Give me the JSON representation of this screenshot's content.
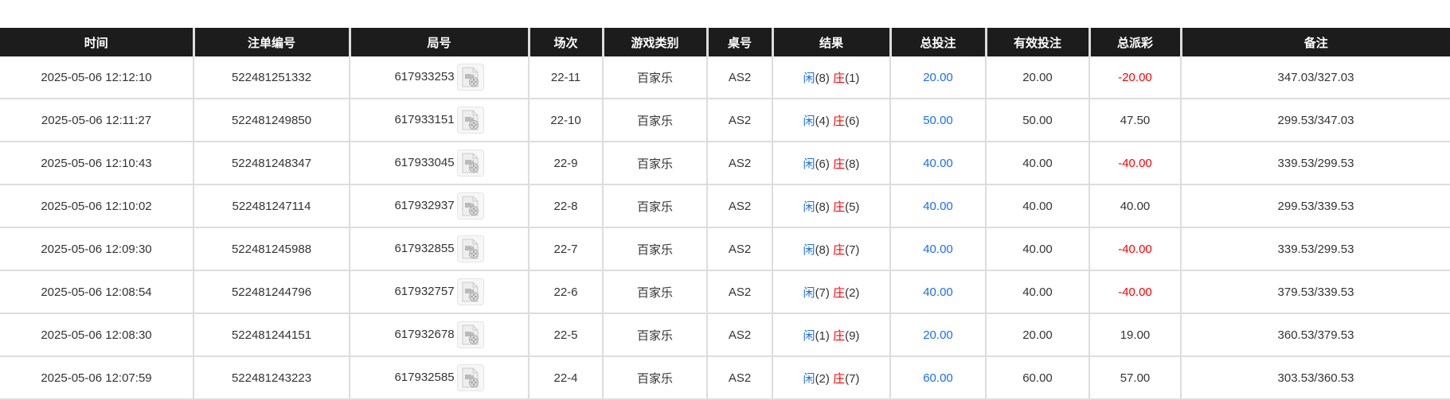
{
  "columns": [
    "时间",
    "注单编号",
    "局号",
    "场次",
    "游戏类别",
    "桌号",
    "结果",
    "总投注",
    "有效投注",
    "总派彩",
    "备注"
  ],
  "rows": [
    {
      "time": "2025-05-06 12:12:10",
      "bet_id": "522481251332",
      "round": "617933253",
      "shoe": "22-11",
      "game": "百家乐",
      "table": "AS2",
      "player_label": "闲",
      "player": "(8)",
      "banker_label": "庄",
      "banker": "(1)",
      "total_bet": "20.00",
      "valid_bet": "20.00",
      "payout": "-20.00",
      "payout_negative": true,
      "note": "347.03/327.03"
    },
    {
      "time": "2025-05-06 12:11:27",
      "bet_id": "522481249850",
      "round": "617933151",
      "shoe": "22-10",
      "game": "百家乐",
      "table": "AS2",
      "player_label": "闲",
      "player": "(4)",
      "banker_label": "庄",
      "banker": "(6)",
      "total_bet": "50.00",
      "valid_bet": "50.00",
      "payout": "47.50",
      "payout_negative": false,
      "note": "299.53/347.03"
    },
    {
      "time": "2025-05-06 12:10:43",
      "bet_id": "522481248347",
      "round": "617933045",
      "shoe": "22-9",
      "game": "百家乐",
      "table": "AS2",
      "player_label": "闲",
      "player": "(6)",
      "banker_label": "庄",
      "banker": "(8)",
      "total_bet": "40.00",
      "valid_bet": "40.00",
      "payout": "-40.00",
      "payout_negative": true,
      "note": "339.53/299.53"
    },
    {
      "time": "2025-05-06 12:10:02",
      "bet_id": "522481247114",
      "round": "617932937",
      "shoe": "22-8",
      "game": "百家乐",
      "table": "AS2",
      "player_label": "闲",
      "player": "(8)",
      "banker_label": "庄",
      "banker": "(5)",
      "total_bet": "40.00",
      "valid_bet": "40.00",
      "payout": "40.00",
      "payout_negative": false,
      "note": "299.53/339.53"
    },
    {
      "time": "2025-05-06 12:09:30",
      "bet_id": "522481245988",
      "round": "617932855",
      "shoe": "22-7",
      "game": "百家乐",
      "table": "AS2",
      "player_label": "闲",
      "player": "(8)",
      "banker_label": "庄",
      "banker": "(7)",
      "total_bet": "40.00",
      "valid_bet": "40.00",
      "payout": "-40.00",
      "payout_negative": true,
      "note": "339.53/299.53"
    },
    {
      "time": "2025-05-06 12:08:54",
      "bet_id": "522481244796",
      "round": "617932757",
      "shoe": "22-6",
      "game": "百家乐",
      "table": "AS2",
      "player_label": "闲",
      "player": "(7)",
      "banker_label": "庄",
      "banker": "(2)",
      "total_bet": "40.00",
      "valid_bet": "40.00",
      "payout": "-40.00",
      "payout_negative": true,
      "note": "379.53/339.53"
    },
    {
      "time": "2025-05-06 12:08:30",
      "bet_id": "522481244151",
      "round": "617932678",
      "shoe": "22-5",
      "game": "百家乐",
      "table": "AS2",
      "player_label": "闲",
      "player": "(1)",
      "banker_label": "庄",
      "banker": "(9)",
      "total_bet": "20.00",
      "valid_bet": "20.00",
      "payout": "19.00",
      "payout_negative": false,
      "note": "360.53/379.53"
    },
    {
      "time": "2025-05-06 12:07:59",
      "bet_id": "522481243223",
      "round": "617932585",
      "shoe": "22-4",
      "game": "百家乐",
      "table": "AS2",
      "player_label": "闲",
      "player": "(2)",
      "banker_label": "庄",
      "banker": "(7)",
      "total_bet": "60.00",
      "valid_bet": "60.00",
      "payout": "57.00",
      "payout_negative": false,
      "note": "303.53/360.53"
    }
  ],
  "colors": {
    "header_bg": "#1c1c1c",
    "player": "#1a6ef5",
    "banker": "#ff0000",
    "negative": "#ff0000",
    "total_bet": "#1a6ef5"
  },
  "icons": {
    "replay": "video-file-icon"
  }
}
